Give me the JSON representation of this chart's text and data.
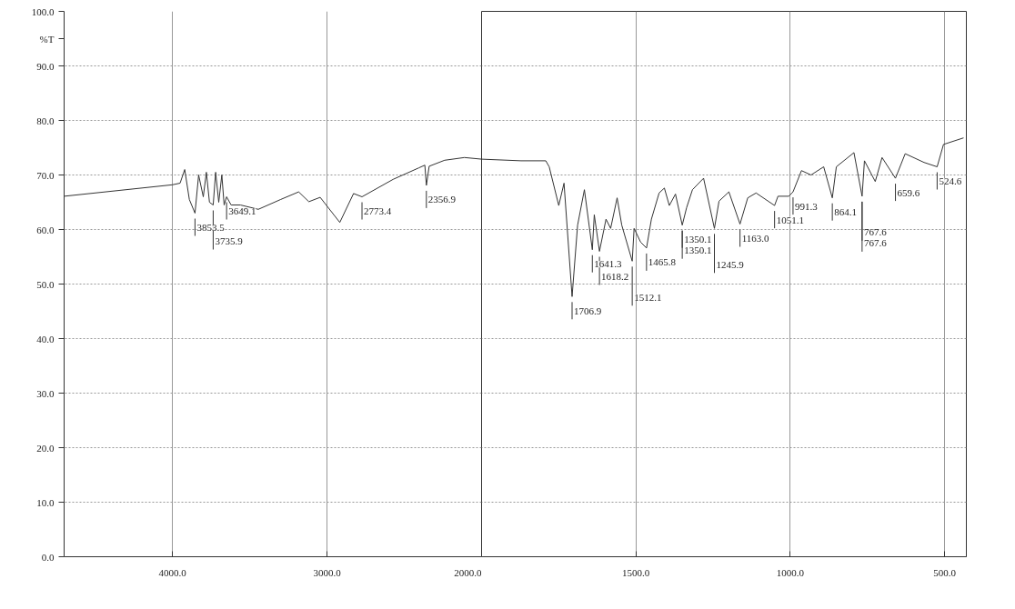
{
  "chart_data": [
    {
      "type": "line",
      "ylabel": "%T",
      "xlim": [
        4700,
        2000
      ],
      "ylim": [
        0,
        100
      ],
      "xticks": [
        {
          "value": 4000,
          "label": "4000.0"
        },
        {
          "value": 3000,
          "label": "3000.0"
        },
        {
          "value": 2000,
          "label": "2000.0"
        }
      ],
      "yticks": [
        {
          "value": 0,
          "label": "0.0"
        },
        {
          "value": 10,
          "label": "10.0"
        },
        {
          "value": 20,
          "label": "20.0"
        },
        {
          "value": 30,
          "label": "30.0"
        },
        {
          "value": 40,
          "label": "40.0"
        },
        {
          "value": 50,
          "label": "50.0"
        },
        {
          "value": 60,
          "label": "60.0"
        },
        {
          "value": 70,
          "label": "70.0"
        },
        {
          "value": 80,
          "label": "80.0"
        },
        {
          "value": 90,
          "label": "90.0"
        },
        {
          "value": 100,
          "label": "100.0"
        }
      ],
      "grid": true,
      "marker": "none",
      "line_style": "solid",
      "series": [
        {
          "color": "#333333",
          "x": [
            4700,
            4000,
            3950,
            3920,
            3890,
            3853.5,
            3830,
            3800,
            3780,
            3760,
            3735.9,
            3720,
            3700,
            3680,
            3665,
            3649.1,
            3620,
            3560,
            3444,
            3300,
            3183,
            3117,
            3044,
            2917,
            2828,
            2773.4,
            2572,
            2406,
            2367,
            2356.9,
            2339,
            2239,
            2111,
            2000
          ],
          "values": [
            66.1,
            68.2,
            68.5,
            71.0,
            65.5,
            63.0,
            70.0,
            66.0,
            70.5,
            65.0,
            64.5,
            70.5,
            65.0,
            70.0,
            64.5,
            66.0,
            64.5,
            64.5,
            63.7,
            65.5,
            66.9,
            65.1,
            65.9,
            61.3,
            66.6,
            66.0,
            69.2,
            71.3,
            71.8,
            68.1,
            71.6,
            72.7,
            73.2,
            72.9
          ]
        }
      ],
      "annotations": [
        {
          "text": "3853.5",
          "x": 3853.5,
          "y": 63.0
        },
        {
          "text": "3735.9",
          "x": 3735.9,
          "y": 64.5
        },
        {
          "text": "3649.1",
          "x": 3649.1,
          "y": 66.0
        },
        {
          "text": "2773.4",
          "x": 2773.4,
          "y": 66.0
        },
        {
          "text": "2356.9",
          "x": 2356.9,
          "y": 68.1
        }
      ]
    },
    {
      "type": "line",
      "xlim": [
        2000,
        430
      ],
      "ylim": [
        0,
        100
      ],
      "xticks": [
        {
          "value": 1500,
          "label": "1500.0"
        },
        {
          "value": 1000,
          "label": "1000.0"
        },
        {
          "value": 500,
          "label": "500.0"
        }
      ],
      "yticks": [
        {
          "value": 0,
          "label": null
        },
        {
          "value": 10,
          "label": null
        },
        {
          "value": 20,
          "label": null
        },
        {
          "value": 30,
          "label": null
        },
        {
          "value": 40,
          "label": null
        },
        {
          "value": 50,
          "label": null
        },
        {
          "value": 60,
          "label": null
        },
        {
          "value": 70,
          "label": null
        },
        {
          "value": 80,
          "label": null
        },
        {
          "value": 90,
          "label": null
        },
        {
          "value": 100,
          "label": null
        }
      ],
      "tick_labels": "x",
      "grid": true,
      "marker": "none",
      "line_style": "solid",
      "series": [
        {
          "color": "#333333",
          "x": [
            2000,
            1872,
            1792,
            1781,
            1750,
            1733,
            1706.9,
            1689,
            1667,
            1641.3,
            1635,
            1618.2,
            1597,
            1582,
            1561,
            1546,
            1512.1,
            1506,
            1485,
            1465.8,
            1450,
            1425,
            1408,
            1392,
            1372,
            1350.1,
            1336,
            1317,
            1281,
            1245.9,
            1231,
            1199,
            1163.0,
            1138,
            1111,
            1051.1,
            1040,
            1005,
            991.3,
            964,
            933,
            892,
            864.1,
            851,
            794,
            767.6,
            760,
            725,
            703,
            659.6,
            628,
            567,
            524.6,
            504,
            439
          ],
          "values": [
            72.9,
            72.6,
            72.6,
            71.5,
            64.4,
            68.5,
            47.7,
            60.8,
            67.3,
            56.3,
            62.7,
            56.0,
            61.9,
            60.2,
            65.8,
            60.8,
            54.2,
            60.2,
            57.7,
            56.6,
            61.9,
            66.7,
            67.6,
            64.4,
            66.5,
            60.8,
            64.0,
            67.3,
            69.4,
            60.2,
            65.2,
            66.9,
            61.0,
            65.8,
            66.7,
            64.4,
            66.1,
            66.1,
            66.9,
            70.8,
            70.0,
            71.5,
            65.8,
            71.5,
            74.1,
            66.1,
            72.6,
            68.8,
            73.2,
            69.4,
            73.9,
            72.3,
            71.5,
            75.6,
            76.8
          ]
        }
      ],
      "annotations": [
        {
          "text": "1706.9",
          "x": 1706.9,
          "y": 47.7
        },
        {
          "text": "1641.3",
          "x": 1641.3,
          "y": 56.3
        },
        {
          "text": "1618.2",
          "x": 1618.2,
          "y": 56.0
        },
        {
          "text": "1512.1",
          "x": 1512.1,
          "y": 54.2
        },
        {
          "text": "1465.8",
          "x": 1465.8,
          "y": 56.6
        },
        {
          "text": "1350.1",
          "x": 1350.1,
          "y": 60.8
        },
        {
          "text": "1350.1",
          "x": 1350.1,
          "y": 60.8
        },
        {
          "text": "1245.9",
          "x": 1245.9,
          "y": 60.2
        },
        {
          "text": "1163.0",
          "x": 1163.0,
          "y": 61.0
        },
        {
          "text": "1051.1",
          "x": 1051.1,
          "y": 64.4
        },
        {
          "text": "991.3",
          "x": 991.3,
          "y": 66.9
        },
        {
          "text": "864.1",
          "x": 864.1,
          "y": 65.8
        },
        {
          "text": "767.6",
          "x": 767.6,
          "y": 66.1
        },
        {
          "text": "767.6",
          "x": 767.6,
          "y": 66.1
        },
        {
          "text": "659.6",
          "x": 659.6,
          "y": 69.4
        },
        {
          "text": "524.6",
          "x": 524.6,
          "y": 71.5
        }
      ]
    }
  ]
}
